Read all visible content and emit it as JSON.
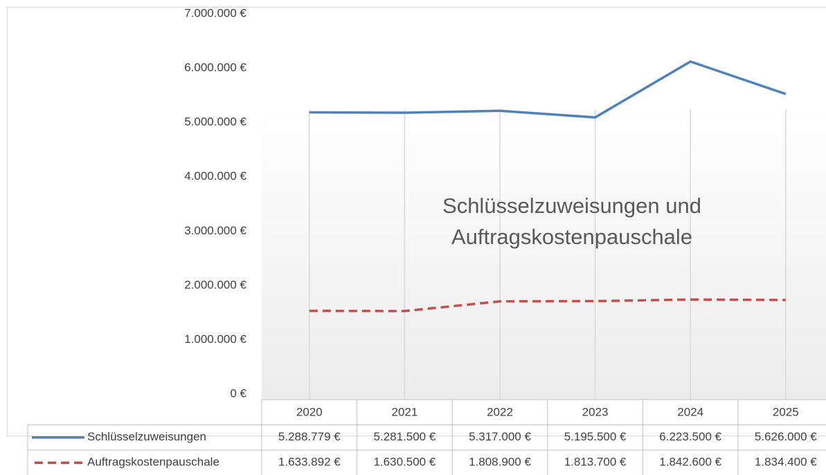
{
  "chart_data": {
    "type": "line",
    "title": "Schlüsselzuweisungen und Auftragskostenpauschale",
    "categories": [
      "2020",
      "2021",
      "2022",
      "2023",
      "2024",
      "2025"
    ],
    "series": [
      {
        "name": "Schlüsselzuweisungen",
        "color": "#4f81bd",
        "dash": false,
        "values": [
          5288779,
          5281500,
          5317000,
          5195500,
          6223500,
          5626000
        ],
        "value_labels": [
          "5.288.779 €",
          "5.281.500 €",
          "5.317.000 €",
          "5.195.500 €",
          "6.223.500 €",
          "5.626.000 €"
        ]
      },
      {
        "name": "Auftragskostenpauschale",
        "color": "#c0504d",
        "dash": true,
        "values": [
          1633892,
          1630500,
          1808900,
          1813700,
          1842600,
          1834400
        ],
        "value_labels": [
          "1.633.892 €",
          "1.630.500 €",
          "1.808.900 €",
          "1.813.700 €",
          "1.842.600 €",
          "1.834.400 €"
        ]
      }
    ],
    "ylim": [
      0,
      7000000
    ],
    "yticks": [
      {
        "value": 0,
        "label": "0 €"
      },
      {
        "value": 1000000,
        "label": "1.000.000 €"
      },
      {
        "value": 2000000,
        "label": "2.000.000 €"
      },
      {
        "value": 3000000,
        "label": "3.000.000 €"
      },
      {
        "value": 4000000,
        "label": "4.000.000 €"
      },
      {
        "value": 5000000,
        "label": "5.000.000 €"
      },
      {
        "value": 6000000,
        "label": "6.000.000 €"
      },
      {
        "value": 7000000,
        "label": "7.000.000 €"
      }
    ],
    "grid": "x"
  }
}
